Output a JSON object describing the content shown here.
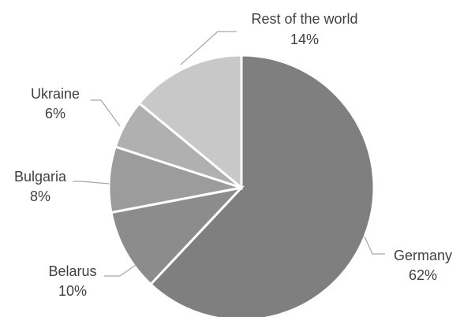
{
  "chart_data": {
    "type": "pie",
    "title": "",
    "slices": [
      {
        "category": "Germany",
        "value": 62,
        "value_label": "62%",
        "color": "#7f7f7f"
      },
      {
        "category": "Belarus",
        "value": 10,
        "value_label": "10%",
        "color": "#8c8c8c"
      },
      {
        "category": "Bulgaria",
        "value": 8,
        "value_label": "8%",
        "color": "#9c9c9c"
      },
      {
        "category": "Ukraine",
        "value": 6,
        "value_label": "6%",
        "color": "#b0b0b0"
      },
      {
        "category": "Rest of the world",
        "value": 14,
        "value_label": "14%",
        "color": "#c8c8c8"
      }
    ],
    "start_angle": "12 o'clock",
    "direction": "clockwise",
    "legend": "none",
    "labels": "outside with leader lines"
  }
}
